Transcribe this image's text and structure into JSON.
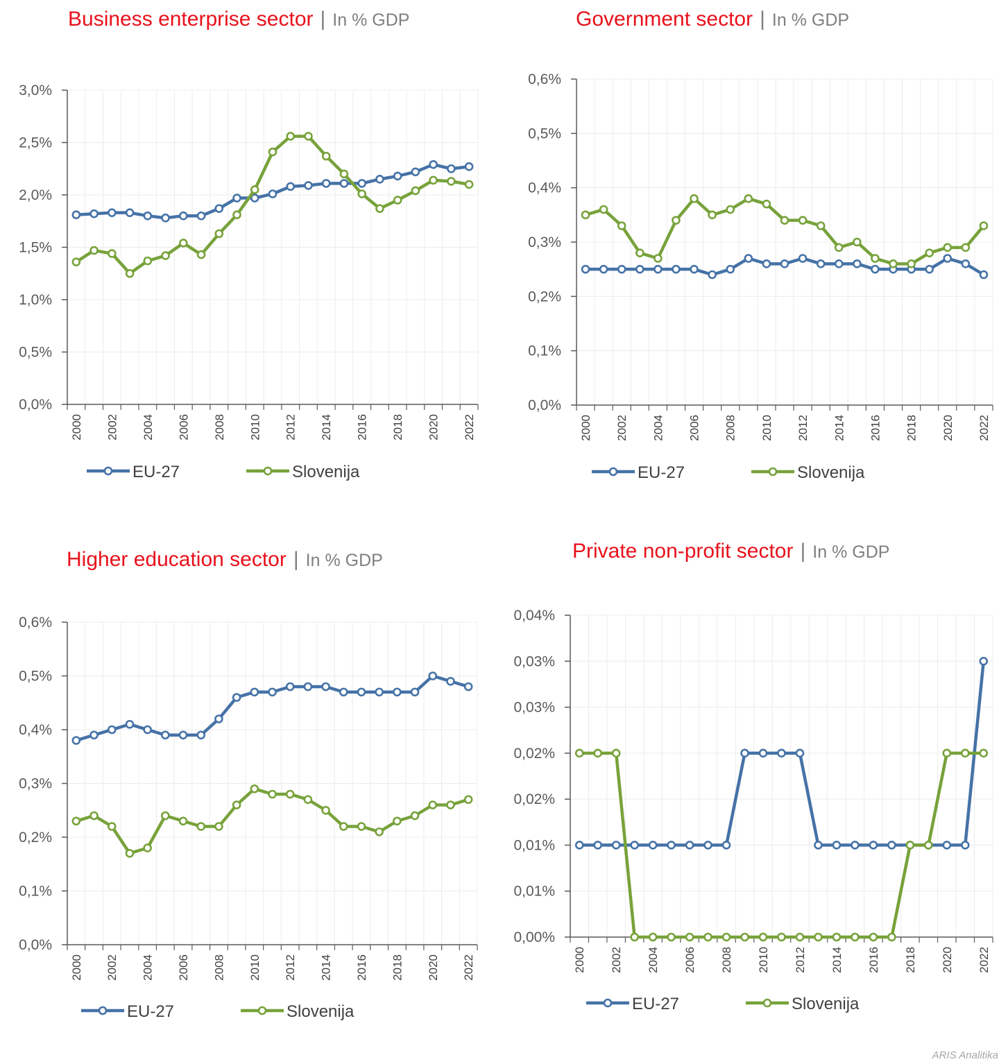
{
  "credit": "ARIS Analitika",
  "colors": {
    "eu": "#4572a7",
    "si": "#77a23a",
    "title": "#e8111c",
    "subtitle": "#7f7f7f"
  },
  "chart_data": [
    {
      "type": "line",
      "title": "Business enterprise sector",
      "subtitle": "In % GDP",
      "x": [
        2000,
        2001,
        2002,
        2003,
        2004,
        2005,
        2006,
        2007,
        2008,
        2009,
        2010,
        2011,
        2012,
        2013,
        2014,
        2015,
        2016,
        2017,
        2018,
        2019,
        2020,
        2021,
        2022
      ],
      "x_tick_labels": [
        "2000",
        "2002",
        "2004",
        "2006",
        "2008",
        "2010",
        "2012",
        "2014",
        "2016",
        "2018",
        "2020",
        "2022"
      ],
      "ylim": [
        0,
        3.0
      ],
      "y_tick_labels": [
        "0,0%",
        "0,5%",
        "1,0%",
        "1,5%",
        "2,0%",
        "2,5%",
        "3,0%"
      ],
      "grid": true,
      "legend": "bottom",
      "series": [
        {
          "name": "EU-27",
          "values": [
            1.81,
            1.82,
            1.83,
            1.83,
            1.8,
            1.78,
            1.8,
            1.8,
            1.87,
            1.97,
            1.97,
            2.01,
            2.08,
            2.09,
            2.11,
            2.11,
            2.11,
            2.15,
            2.18,
            2.22,
            2.29,
            2.25,
            2.27
          ]
        },
        {
          "name": "Slovenija",
          "values": [
            1.36,
            1.47,
            1.44,
            1.25,
            1.37,
            1.42,
            1.54,
            1.43,
            1.63,
            1.81,
            2.05,
            2.41,
            2.56,
            2.56,
            2.37,
            2.2,
            2.01,
            1.87,
            1.95,
            2.04,
            2.14,
            2.13,
            2.1
          ]
        }
      ]
    },
    {
      "type": "line",
      "title": "Government sector",
      "subtitle": "In % GDP",
      "x": [
        2000,
        2001,
        2002,
        2003,
        2004,
        2005,
        2006,
        2007,
        2008,
        2009,
        2010,
        2011,
        2012,
        2013,
        2014,
        2015,
        2016,
        2017,
        2018,
        2019,
        2020,
        2021,
        2022
      ],
      "x_tick_labels": [
        "2000",
        "2002",
        "2004",
        "2006",
        "2008",
        "2010",
        "2012",
        "2014",
        "2016",
        "2018",
        "2020",
        "2022"
      ],
      "ylim": [
        0,
        0.6
      ],
      "y_tick_labels": [
        "0,0%",
        "0,1%",
        "0,2%",
        "0,3%",
        "0,4%",
        "0,5%",
        "0,6%"
      ],
      "grid": true,
      "legend": "bottom",
      "series": [
        {
          "name": "EU-27",
          "values": [
            0.25,
            0.25,
            0.25,
            0.25,
            0.25,
            0.25,
            0.25,
            0.24,
            0.25,
            0.27,
            0.26,
            0.26,
            0.27,
            0.26,
            0.26,
            0.26,
            0.25,
            0.25,
            0.25,
            0.25,
            0.27,
            0.26,
            0.24
          ]
        },
        {
          "name": "Slovenija",
          "values": [
            0.35,
            0.36,
            0.33,
            0.28,
            0.27,
            0.34,
            0.38,
            0.35,
            0.36,
            0.38,
            0.37,
            0.34,
            0.34,
            0.33,
            0.29,
            0.3,
            0.27,
            0.26,
            0.26,
            0.28,
            0.29,
            0.29,
            0.33
          ]
        }
      ]
    },
    {
      "type": "line",
      "title": "Higher education sector",
      "subtitle": "In % GDP",
      "x": [
        2000,
        2001,
        2002,
        2003,
        2004,
        2005,
        2006,
        2007,
        2008,
        2009,
        2010,
        2011,
        2012,
        2013,
        2014,
        2015,
        2016,
        2017,
        2018,
        2019,
        2020,
        2021,
        2022
      ],
      "x_tick_labels": [
        "2000",
        "2002",
        "2004",
        "2006",
        "2008",
        "2010",
        "2012",
        "2014",
        "2016",
        "2018",
        "2020",
        "2022"
      ],
      "ylim": [
        0,
        0.6
      ],
      "y_tick_labels": [
        "0,0%",
        "0,1%",
        "0,2%",
        "0,3%",
        "0,4%",
        "0,5%",
        "0,6%"
      ],
      "grid": true,
      "legend": "bottom",
      "series": [
        {
          "name": "EU-27",
          "values": [
            0.38,
            0.39,
            0.4,
            0.41,
            0.4,
            0.39,
            0.39,
            0.39,
            0.42,
            0.46,
            0.47,
            0.47,
            0.48,
            0.48,
            0.48,
            0.47,
            0.47,
            0.47,
            0.47,
            0.47,
            0.5,
            0.49,
            0.48
          ]
        },
        {
          "name": "Slovenija",
          "values": [
            0.23,
            0.24,
            0.22,
            0.17,
            0.18,
            0.24,
            0.23,
            0.22,
            0.22,
            0.26,
            0.29,
            0.28,
            0.28,
            0.27,
            0.25,
            0.22,
            0.22,
            0.21,
            0.23,
            0.24,
            0.26,
            0.26,
            0.27
          ]
        }
      ]
    },
    {
      "type": "line",
      "title": "Private non-profit sector",
      "subtitle": "In % GDP",
      "x": [
        2000,
        2001,
        2002,
        2003,
        2004,
        2005,
        2006,
        2007,
        2008,
        2009,
        2010,
        2011,
        2012,
        2013,
        2014,
        2015,
        2016,
        2017,
        2018,
        2019,
        2020,
        2021,
        2022
      ],
      "x_tick_labels": [
        "2000",
        "2002",
        "2004",
        "2006",
        "2008",
        "2010",
        "2012",
        "2014",
        "2016",
        "2018",
        "2020",
        "2022"
      ],
      "ylim": [
        0,
        0.035
      ],
      "y_tick_labels": [
        "0,00%",
        "0,01%",
        "0,01%",
        "0,02%",
        "0,02%",
        "0,03%",
        "0,03%",
        "0,04%"
      ],
      "grid": true,
      "legend": "bottom",
      "series": [
        {
          "name": "EU-27",
          "values": [
            0.01,
            0.01,
            0.01,
            0.01,
            0.01,
            0.01,
            0.01,
            0.01,
            0.01,
            0.02,
            0.02,
            0.02,
            0.02,
            0.01,
            0.01,
            0.01,
            0.01,
            0.01,
            0.01,
            0.01,
            0.01,
            0.01,
            0.03
          ]
        },
        {
          "name": "Slovenija",
          "values": [
            0.02,
            0.02,
            0.02,
            0,
            0,
            0,
            0,
            0,
            0,
            0,
            0,
            0,
            0,
            0,
            0,
            0,
            0,
            0,
            0.01,
            0.01,
            0.02,
            0.02,
            0.02
          ]
        }
      ]
    }
  ]
}
